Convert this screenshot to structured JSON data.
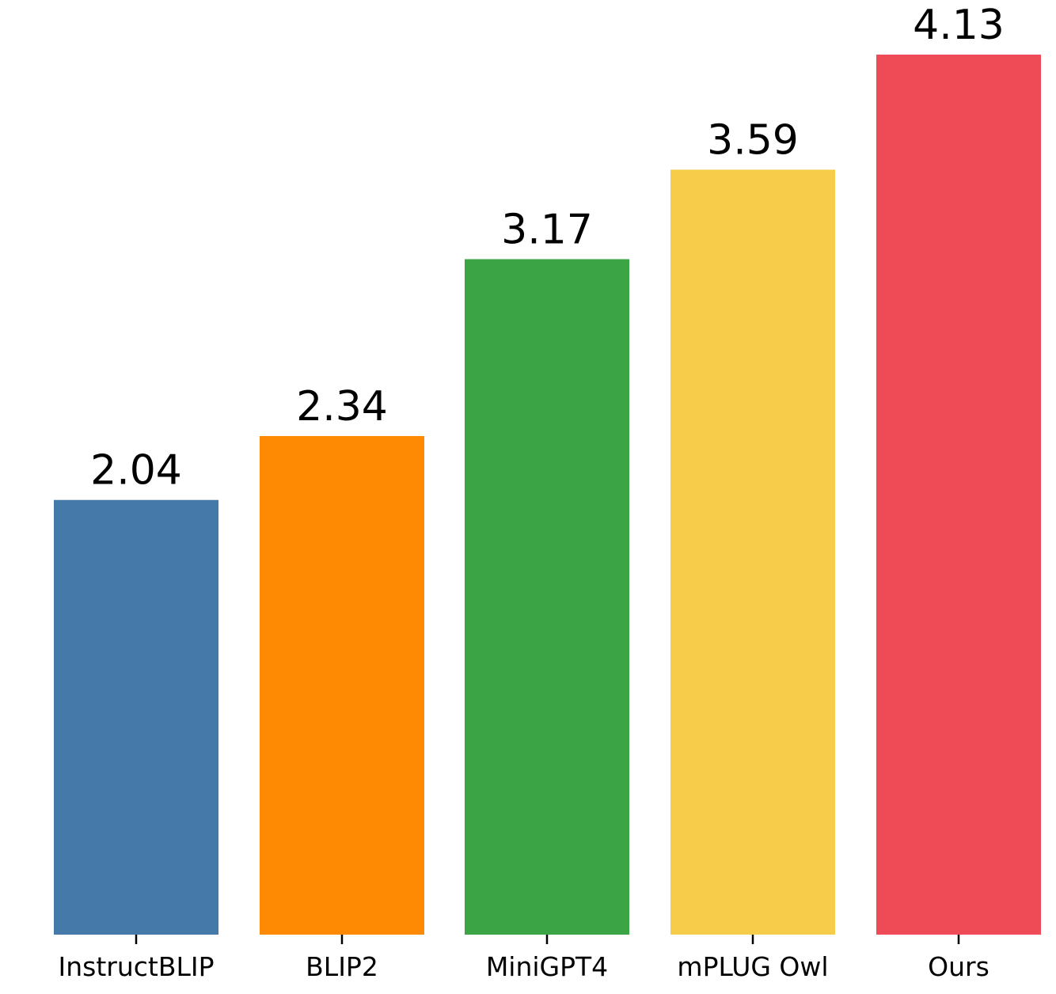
{
  "chart_data": {
    "type": "bar",
    "categories": [
      "InstructBLIP",
      "BLIP2",
      "MiniGPT4",
      "mPLUG Owl",
      "Ours"
    ],
    "values": [
      2.04,
      2.34,
      3.17,
      3.59,
      4.13
    ],
    "value_labels": [
      "2.04",
      "2.34",
      "3.17",
      "3.59",
      "4.13"
    ],
    "colors": [
      "#4479aa",
      "#fe8a03",
      "#3ba444",
      "#f6cd4b",
      "#ef4b57"
    ],
    "ylim": [
      0,
      4.13
    ],
    "grid": false,
    "legend": "none"
  }
}
